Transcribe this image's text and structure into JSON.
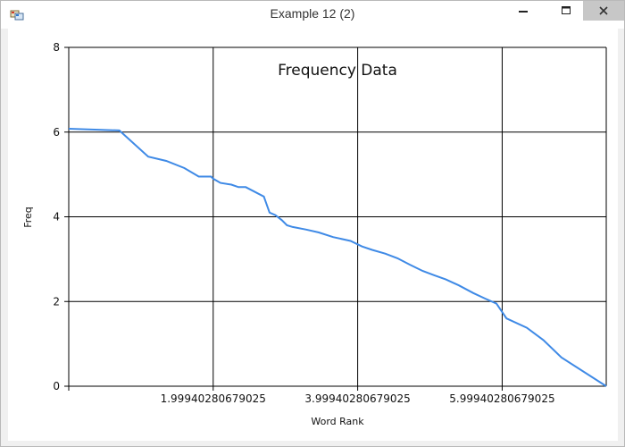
{
  "window": {
    "title": "Example 12 (2)",
    "controls": [
      "minimize",
      "maximize",
      "close"
    ],
    "icons": {
      "app": "app-window-icon",
      "minimize": "minimize-icon",
      "maximize": "maximize-icon",
      "close": "close-icon"
    }
  },
  "chart_data": {
    "type": "line",
    "title": "Frequency Data",
    "xlabel": "Word Rank",
    "ylabel": "Freq",
    "xlim": [
      0,
      7.44
    ],
    "ylim": [
      0,
      8
    ],
    "x_ticks": [
      0,
      1.99940280679025,
      3.99940280679025,
      5.99940280679025
    ],
    "x_tick_labels": [
      "",
      "1.99940280679025",
      "3.99940280679025",
      "5.99940280679025"
    ],
    "y_ticks": [
      0,
      2,
      4,
      6,
      8
    ],
    "y_tick_labels": [
      "0",
      "2",
      "4",
      "6",
      "8"
    ],
    "grid": true,
    "legend": "none",
    "line_color": "#3f8ae6",
    "series": [
      {
        "x": [
          0,
          0.7,
          1.1,
          1.35,
          1.6,
          1.8,
          1.97,
          2.0,
          2.1,
          2.25,
          2.35,
          2.45,
          2.7,
          2.78,
          2.86,
          2.95,
          3.02,
          3.1,
          3.28,
          3.46,
          3.66,
          3.9,
          4.06,
          4.2,
          4.38,
          4.55,
          4.72,
          4.9,
          5.06,
          5.22,
          5.4,
          5.6,
          5.76,
          5.92,
          6.06,
          6.34,
          6.57,
          6.82,
          7.44
        ],
        "y": [
          6.08,
          6.04,
          5.42,
          5.32,
          5.15,
          4.95,
          4.95,
          4.9,
          4.8,
          4.76,
          4.7,
          4.7,
          4.48,
          4.1,
          4.04,
          3.92,
          3.8,
          3.76,
          3.7,
          3.63,
          3.52,
          3.43,
          3.3,
          3.22,
          3.13,
          3.02,
          2.87,
          2.72,
          2.62,
          2.52,
          2.38,
          2.2,
          2.07,
          1.95,
          1.6,
          1.38,
          1.09,
          0.68,
          0.0
        ]
      }
    ]
  }
}
